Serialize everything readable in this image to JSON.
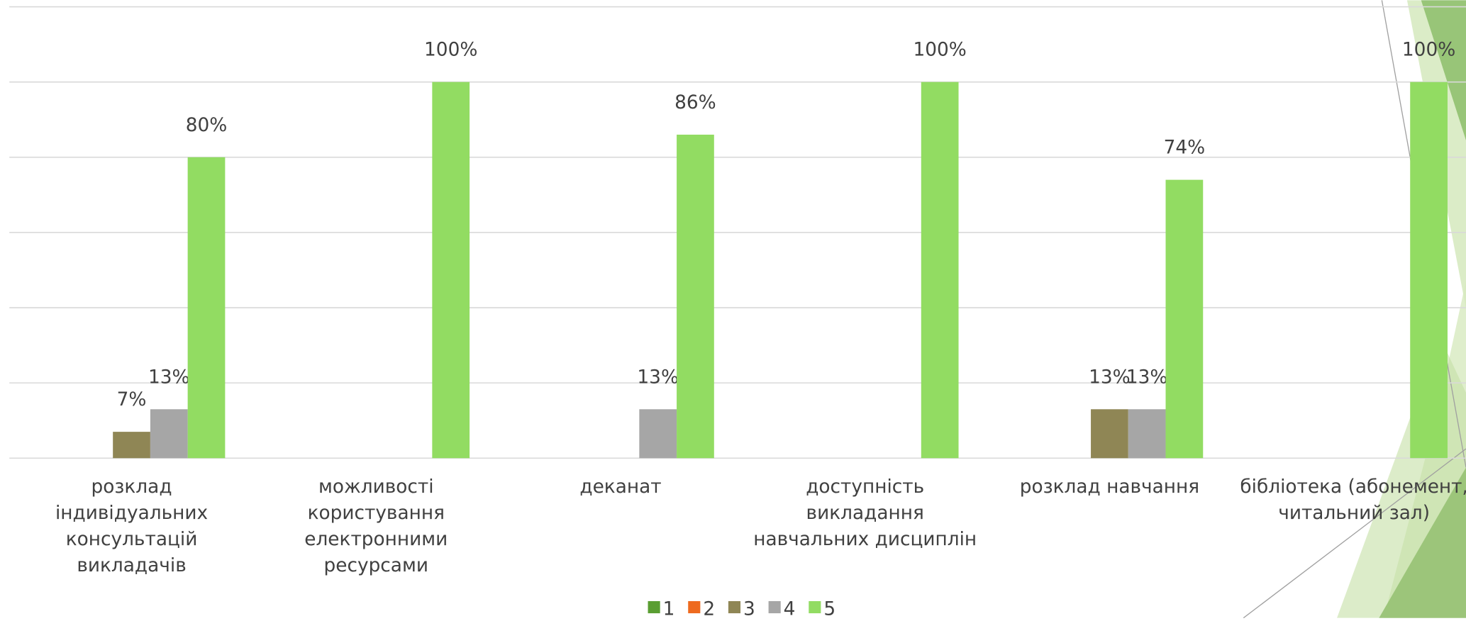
{
  "chart_data": {
    "type": "bar",
    "categories": [
      "розклад\nіндивідуальних\nконсультацій\nвикладачів",
      "можливості\nкористування\nелектронними\nресурсами",
      "деканат",
      "доступність\nвикладання\nнавчальних дисциплін",
      "розклад навчання",
      "бібліотека (абонемент,\nчитальний зал)"
    ],
    "series": [
      {
        "name": "1",
        "color": "#5a9e32",
        "values": [
          null,
          null,
          null,
          null,
          null,
          null
        ],
        "value_labels": [
          null,
          null,
          null,
          null,
          null,
          null
        ]
      },
      {
        "name": "2",
        "color": "#ee6a1f",
        "values": [
          null,
          null,
          null,
          null,
          null,
          null
        ],
        "value_labels": [
          null,
          null,
          null,
          null,
          null,
          null
        ]
      },
      {
        "name": "3",
        "color": "#8f8655",
        "values": [
          7,
          null,
          null,
          null,
          13,
          null
        ],
        "value_labels": [
          "7%",
          null,
          null,
          null,
          "13%",
          null
        ]
      },
      {
        "name": "4",
        "color": "#a6a6a6",
        "values": [
          13,
          null,
          13,
          null,
          13,
          null
        ],
        "value_labels": [
          "13%",
          null,
          "13%",
          null,
          "13%",
          null
        ]
      },
      {
        "name": "5",
        "color": "#92dc62",
        "values": [
          80,
          100,
          86,
          100,
          74,
          100
        ],
        "value_labels": [
          "80%",
          "100%",
          "86%",
          "100%",
          "74%",
          "100%"
        ]
      }
    ],
    "ylim": [
      0,
      120
    ],
    "yticks": [
      0,
      20,
      40,
      60,
      80,
      100,
      120
    ],
    "grid": true,
    "legend": "bottom"
  }
}
